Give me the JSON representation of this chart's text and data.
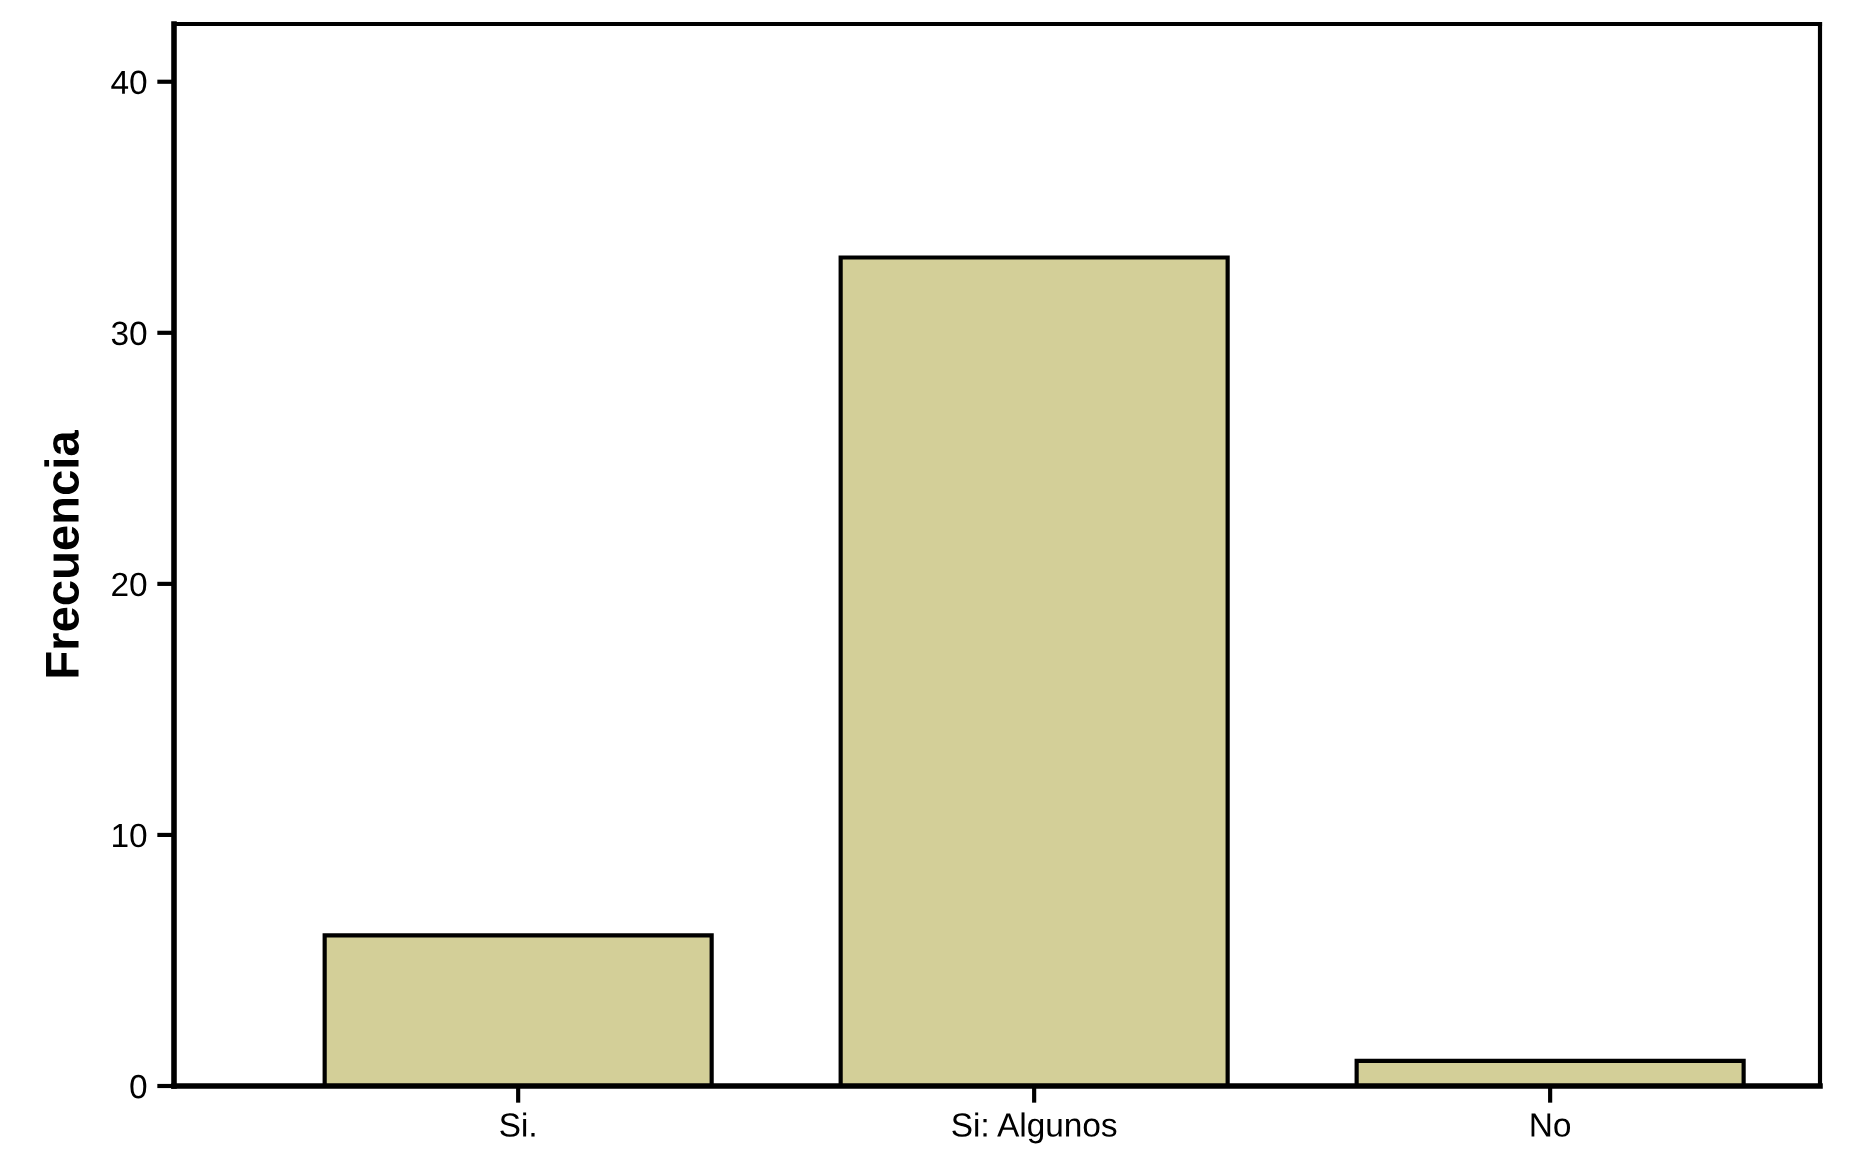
{
  "chart_data": {
    "type": "bar",
    "ylabel": "Frecuencia",
    "categories": [
      "Si.",
      "Si: Algunos",
      "No"
    ],
    "values": [
      6,
      33,
      1
    ],
    "color": "#d3cf98",
    "ylim": [
      0,
      42.3
    ],
    "yticks": [
      0,
      10,
      20,
      30,
      40
    ],
    "grid": false
  }
}
